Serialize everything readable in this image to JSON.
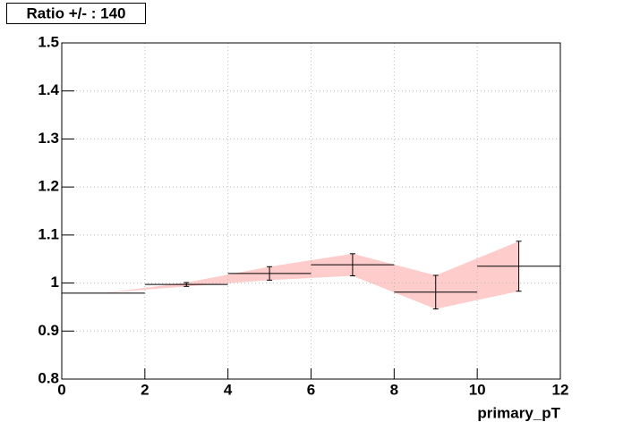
{
  "chart_data": {
    "type": "errorbar",
    "title": "Ratio +/- : 140",
    "x_label": "primary_pT",
    "bins": [
      0,
      2,
      4,
      6,
      8,
      10,
      12
    ],
    "x": [
      1,
      3,
      5,
      7,
      9,
      11
    ],
    "values": [
      0.979,
      0.997,
      1.02,
      1.038,
      0.981,
      1.035
    ],
    "errors": [
      0,
      0.004,
      0.014,
      0.023,
      0.035,
      0.052
    ],
    "color": "#000000",
    "band_color": "#ffcccc",
    "xlim": [
      0,
      12
    ],
    "xticks": [
      0,
      2,
      4,
      6,
      8,
      10,
      12
    ],
    "ylim": [
      0.8,
      1.5
    ],
    "yticks": [
      0.8,
      0.9,
      1,
      1.1,
      1.2,
      1.3,
      1.4,
      1.5
    ],
    "grid": true
  }
}
